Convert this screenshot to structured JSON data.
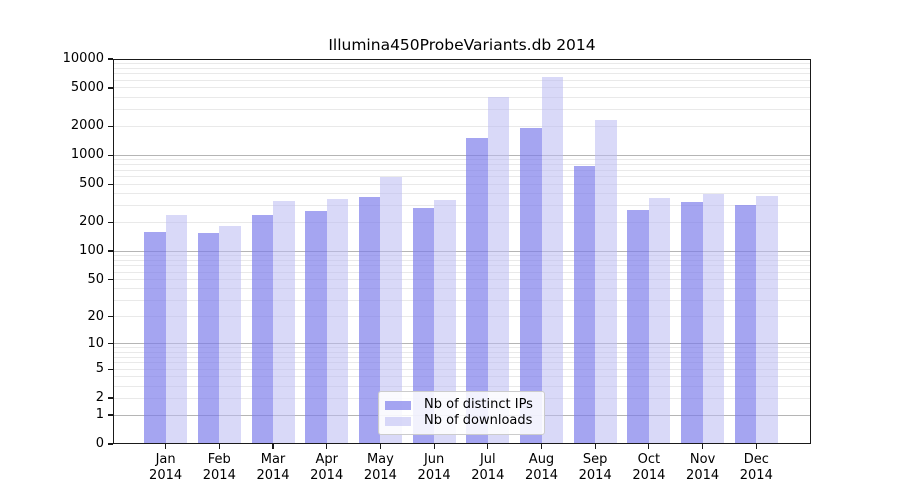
{
  "chart_data": {
    "type": "bar",
    "title": "Illumina450ProbeVariants.db 2014",
    "months": [
      "Jan",
      "Feb",
      "Mar",
      "Apr",
      "May",
      "Jun",
      "Jul",
      "Aug",
      "Sep",
      "Oct",
      "Nov",
      "Dec"
    ],
    "year": "2014",
    "categories": [
      "Jan 2014",
      "Feb 2014",
      "Mar 2014",
      "Apr 2014",
      "May 2014",
      "Jun 2014",
      "Jul 2014",
      "Aug 2014",
      "Sep 2014",
      "Oct 2014",
      "Nov 2014",
      "Dec 2014"
    ],
    "series": [
      {
        "name": "Nb of distinct IPs",
        "color": "#7b7bea",
        "alpha": 0.68,
        "values": [
          160,
          155,
          240,
          260,
          370,
          285,
          1500,
          1900,
          780,
          270,
          325,
          305
        ]
      },
      {
        "name": "Nb of downloads",
        "color": "#b9b9f2",
        "alpha": 0.55,
        "values": [
          240,
          185,
          330,
          350,
          600,
          340,
          4000,
          6500,
          2300,
          355,
          395,
          375
        ]
      }
    ],
    "yscale": "log1p",
    "ylim": [
      0,
      10000
    ],
    "y_ticks": [
      10000,
      5000,
      2000,
      1000,
      500,
      200,
      100,
      50,
      20,
      10,
      5,
      2,
      1,
      0
    ],
    "xlabel": "",
    "ylabel": "",
    "grid": {
      "orientation": "horizontal",
      "major_at": [
        1,
        10,
        100,
        1000
      ],
      "minor": "2-9 of each decade",
      "major_color": "#b5b5b5",
      "minor_color": "#e9e9e9"
    },
    "legend": {
      "position": "lower center inside plot",
      "items": [
        "Nb of distinct IPs",
        "Nb of downloads"
      ]
    }
  },
  "colors": {
    "background": "#ffffff",
    "axis": "#1a1a1a",
    "text": "#000000",
    "legend_border": "#cccccc",
    "bar_ips_composited": "#a5a5f0",
    "bar_downloads_composited": "#d9d9f8"
  }
}
